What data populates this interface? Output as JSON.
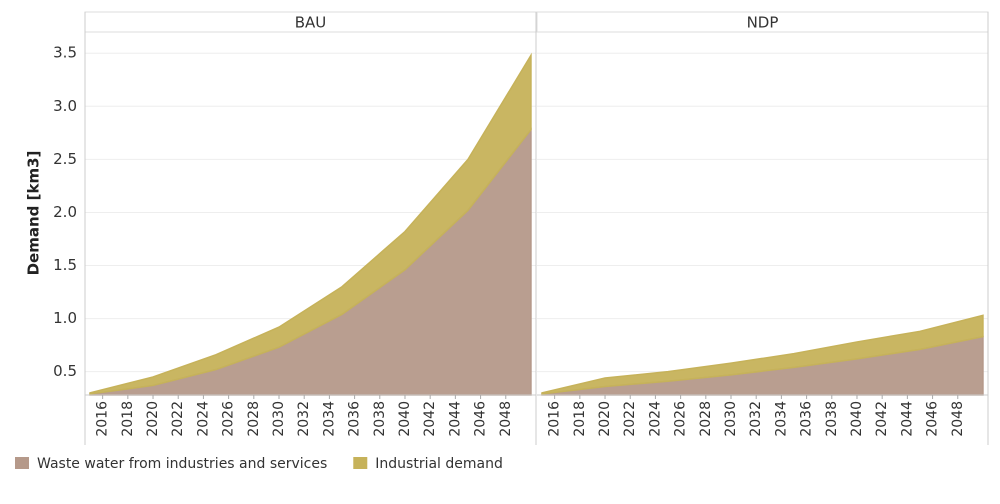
{
  "chart_data": {
    "type": "area",
    "stacked": true,
    "y_label": "Demand [km3]",
    "x": [
      2015,
      2020,
      2025,
      2030,
      2035,
      2040,
      2045,
      2050
    ],
    "xlim": [
      2014.6,
      2050.4
    ],
    "xticks": [
      2016,
      2018,
      2020,
      2022,
      2024,
      2026,
      2028,
      2030,
      2032,
      2034,
      2036,
      2038,
      2040,
      2042,
      2044,
      2046,
      2048
    ],
    "ylim": [
      0.28,
      3.7
    ],
    "yticks": [
      0.5,
      {
        "value": 1,
        "label": "1.0"
      },
      1.5,
      {
        "value": 2,
        "label": "2.0"
      },
      2.5,
      {
        "value": 3,
        "label": "3.0"
      },
      3.5
    ],
    "grid": true,
    "series": [
      {
        "name": "Waste water from industries and services",
        "color": "#b5998a"
      },
      {
        "name": "Industrial demand",
        "color": "#c6b25a"
      }
    ],
    "panels": [
      {
        "title": "BAU",
        "values": [
          [
            0.29,
            0.37,
            0.52,
            0.73,
            1.04,
            1.46,
            2.02,
            2.78
          ],
          [
            0.01,
            0.08,
            0.14,
            0.19,
            0.26,
            0.36,
            0.48,
            0.7
          ]
        ]
      },
      {
        "title": "NDP",
        "values": [
          [
            0.29,
            0.36,
            0.41,
            0.47,
            0.54,
            0.62,
            0.71,
            0.83
          ],
          [
            0.01,
            0.08,
            0.09,
            0.11,
            0.13,
            0.16,
            0.17,
            0.2
          ]
        ]
      }
    ]
  }
}
